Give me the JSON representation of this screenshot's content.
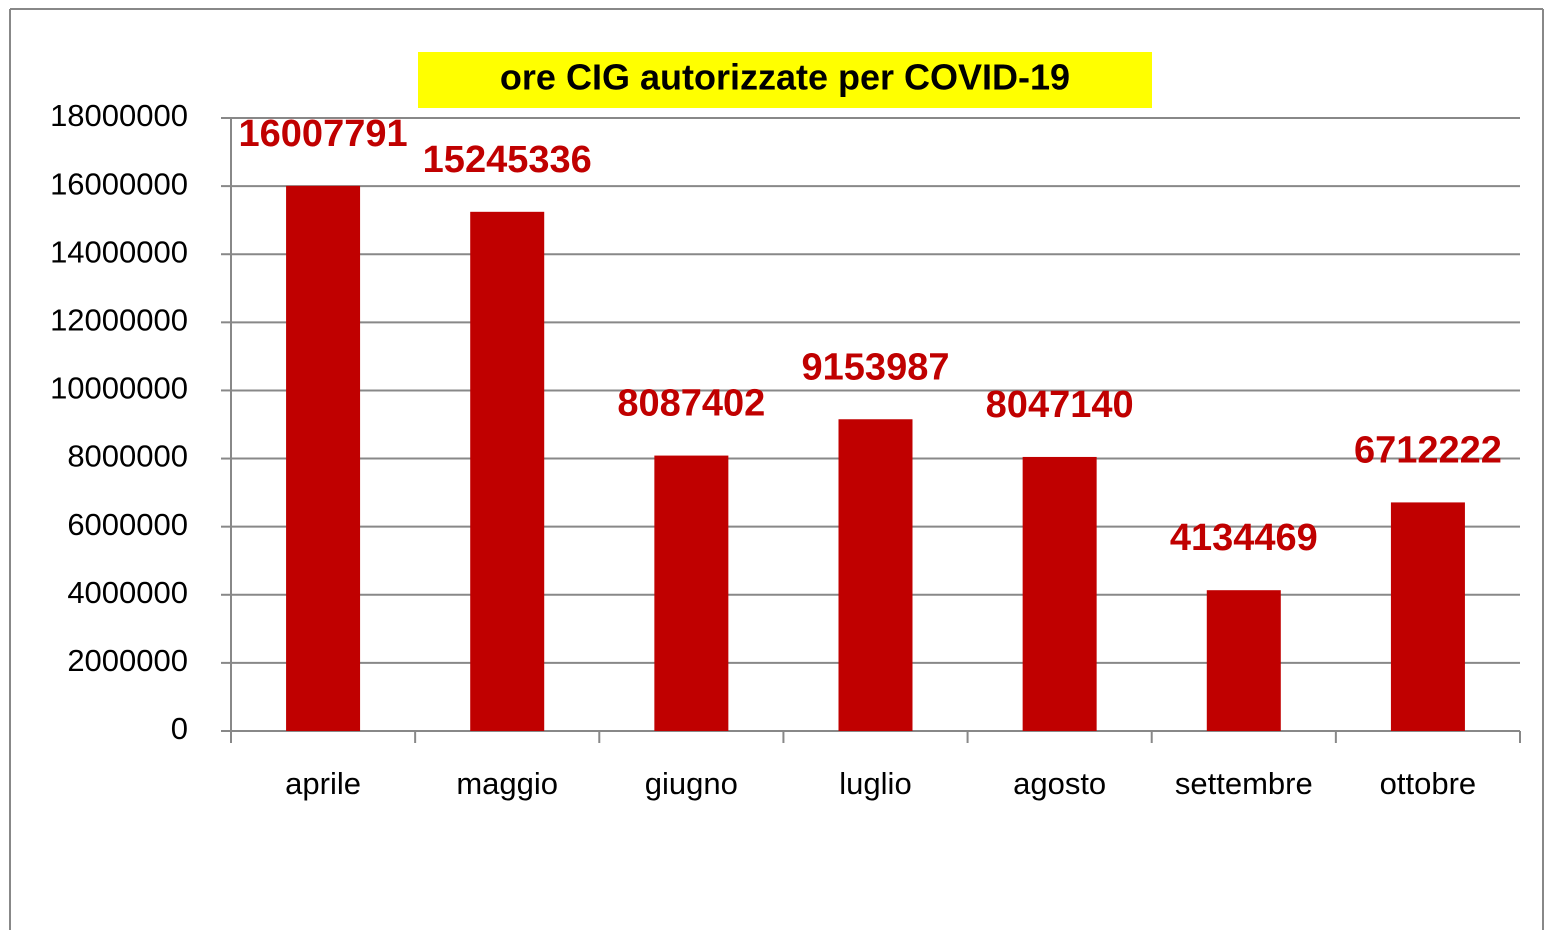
{
  "chart_data": {
    "type": "bar",
    "title": "ore CIG autorizzate per COVID-19",
    "categories": [
      "aprile",
      "maggio",
      "giugno",
      "luglio",
      "agosto",
      "settembre",
      "ottobre"
    ],
    "values": [
      16007791,
      15245336,
      8087402,
      9153987,
      8047140,
      4134469,
      6712222
    ],
    "color": "#c00000",
    "ylim": [
      0,
      18000000
    ],
    "yticks": [
      0,
      2000000,
      4000000,
      6000000,
      8000000,
      10000000,
      12000000,
      14000000,
      16000000,
      18000000
    ],
    "grid": true
  }
}
